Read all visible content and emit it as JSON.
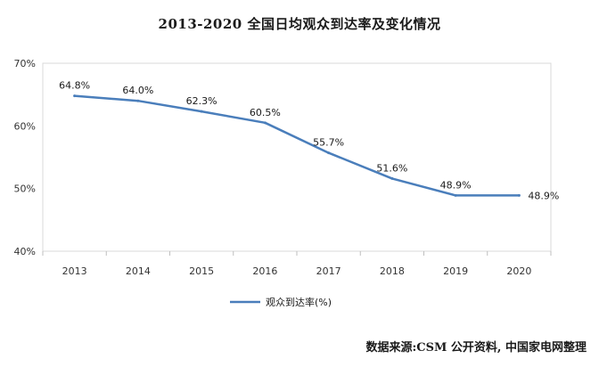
{
  "chart_data": {
    "type": "line",
    "title": "2013-2020 全国日均观众到达率及变化情况",
    "categories": [
      "2013",
      "2014",
      "2015",
      "2016",
      "2017",
      "2018",
      "2019",
      "2020"
    ],
    "series": [
      {
        "name": "观众到达率(%)",
        "values": [
          64.8,
          64.0,
          62.3,
          60.5,
          55.7,
          51.6,
          48.9,
          48.9
        ],
        "data_labels": [
          "64.8%",
          "64.0%",
          "62.3%",
          "60.5%",
          "55.7%",
          "51.6%",
          "48.9%",
          "48.9%"
        ],
        "color": "#4a7ebb"
      }
    ],
    "ylim": [
      40,
      70
    ],
    "yticks": [
      40,
      50,
      60,
      70
    ],
    "ytick_labels": [
      "40%",
      "50%",
      "60%",
      "70%"
    ],
    "xlabel": "",
    "ylabel": "",
    "grid": false,
    "legend_position": "bottom-left"
  },
  "source": "数据来源:CSM 公开资料, 中国家电网整理"
}
